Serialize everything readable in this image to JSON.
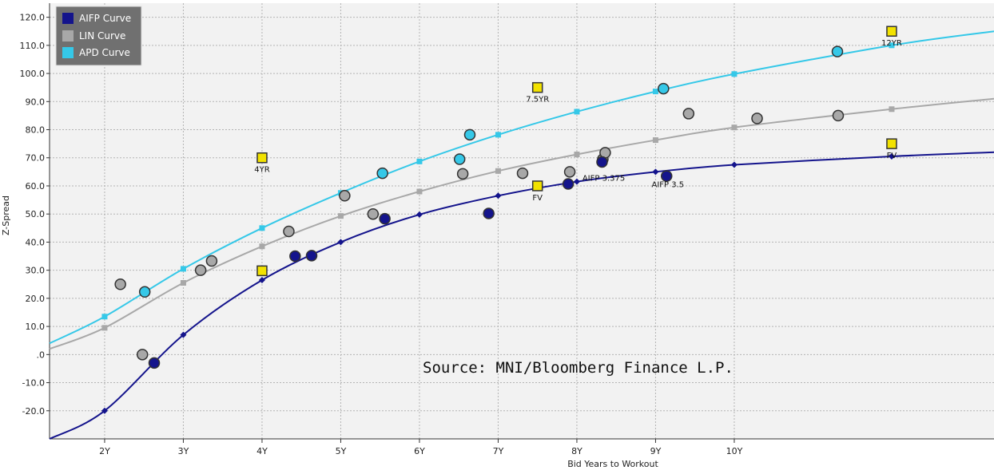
{
  "colors": {
    "aifp": "#14148c",
    "lin": "#a8a8a8",
    "apd": "#35c8e8",
    "fv_square": "#f2e200",
    "grid": "#b4b4b4",
    "plot_bg": "#f2f2f2",
    "legend_bg": "#707070"
  },
  "chart_data": {
    "type": "scatter",
    "title": "",
    "xlabel": "Bid Years to Workout",
    "ylabel": "Z-Spread",
    "xlim": [
      1.3,
      13.3
    ],
    "ylim": [
      -30,
      125
    ],
    "x_ticks": [
      2,
      3,
      4,
      5,
      6,
      7,
      8,
      9,
      10
    ],
    "x_tick_labels": [
      "2Y",
      "3Y",
      "4Y",
      "5Y",
      "6Y",
      "7Y",
      "8Y",
      "9Y",
      "10Y"
    ],
    "y_ticks": [
      -20,
      -10,
      0,
      10,
      20,
      30,
      40,
      50,
      60,
      70,
      80,
      90,
      100,
      110,
      120
    ],
    "y_tick_labels": [
      "-20.0",
      "-10.0",
      ".0",
      "10.0",
      "20.0",
      "30.0",
      "40.0",
      "50.0",
      "60.0",
      "70.0",
      "80.0",
      "90.0",
      "100.0",
      "110.0",
      "120.0"
    ],
    "grid": true,
    "legend_position": "top-left",
    "source": "Source: MNI/Bloomberg Finance L.P.",
    "curves": [
      {
        "name": "AIFP Curve",
        "color": "#14148c",
        "marker": "diamond",
        "x": [
          1.3,
          2,
          3,
          4,
          5,
          6,
          7,
          8,
          9,
          10,
          12,
          13.3
        ],
        "y": [
          -30,
          -20,
          7,
          26.5,
          40,
          49.8,
          56.5,
          61.5,
          65,
          67.5,
          70.5,
          72
        ],
        "marker_x": [
          2,
          3,
          4,
          5,
          6,
          7,
          8,
          9,
          10,
          12
        ],
        "marker_y": [
          -20,
          7,
          26.5,
          40,
          49.8,
          56.5,
          61.5,
          65,
          67.5,
          70.5
        ]
      },
      {
        "name": "LIN Curve",
        "color": "#a8a8a8",
        "marker": "square",
        "x": [
          1.3,
          2,
          3,
          4,
          5,
          6,
          7,
          8,
          9,
          10,
          12,
          13.3
        ],
        "y": [
          2,
          9.5,
          25.5,
          38.5,
          49.3,
          58,
          65.3,
          71.2,
          76.3,
          80.8,
          87.3,
          91
        ],
        "marker_x": [
          2,
          3,
          4,
          5,
          6,
          7,
          8,
          9,
          10,
          12
        ],
        "marker_y": [
          9.5,
          25.5,
          38.5,
          49.3,
          58,
          65.3,
          71.2,
          76.3,
          80.8,
          87.3
        ]
      },
      {
        "name": "APD Curve",
        "color": "#35c8e8",
        "marker": "square",
        "x": [
          1.3,
          2,
          3,
          4,
          5,
          6,
          7,
          8,
          9,
          10,
          12,
          13.3
        ],
        "y": [
          4,
          13.5,
          30.5,
          45,
          57.5,
          68.7,
          78.2,
          86.4,
          93.6,
          99.8,
          110,
          115
        ],
        "marker_x": [
          2,
          3,
          4,
          5,
          6,
          7,
          8,
          9,
          10,
          12
        ],
        "marker_y": [
          13.5,
          30.5,
          45,
          57.5,
          68.7,
          78.2,
          86.4,
          93.6,
          99.8,
          110
        ]
      }
    ],
    "bonds": [
      {
        "series": "LIN",
        "x": 2.2,
        "y": 25
      },
      {
        "series": "LIN",
        "x": 2.48,
        "y": 0
      },
      {
        "series": "LIN",
        "x": 3.22,
        "y": 30
      },
      {
        "series": "LIN",
        "x": 3.36,
        "y": 33.3
      },
      {
        "series": "LIN",
        "x": 4.34,
        "y": 43.8
      },
      {
        "series": "LIN",
        "x": 5.05,
        "y": 56.5
      },
      {
        "series": "LIN",
        "x": 5.41,
        "y": 50
      },
      {
        "series": "LIN",
        "x": 6.55,
        "y": 64.3
      },
      {
        "series": "LIN",
        "x": 7.31,
        "y": 64.5
      },
      {
        "series": "LIN",
        "x": 7.91,
        "y": 65
      },
      {
        "series": "LIN",
        "x": 8.33,
        "y": 69.5
      },
      {
        "series": "LIN",
        "x": 8.36,
        "y": 71.8
      },
      {
        "series": "LIN",
        "x": 9.42,
        "y": 85.7
      },
      {
        "series": "LIN",
        "x": 10.29,
        "y": 84
      },
      {
        "series": "LIN",
        "x": 11.32,
        "y": 85
      },
      {
        "series": "AIFP",
        "x": 2.63,
        "y": -3
      },
      {
        "series": "AIFP",
        "x": 4.42,
        "y": 35
      },
      {
        "series": "AIFP",
        "x": 4.63,
        "y": 35.2
      },
      {
        "series": "AIFP",
        "x": 5.56,
        "y": 48.3
      },
      {
        "series": "AIFP",
        "x": 6.88,
        "y": 50.2
      },
      {
        "series": "AIFP",
        "x": 7.89,
        "y": 60.7
      },
      {
        "series": "AIFP",
        "x": 8.32,
        "y": 68.5
      },
      {
        "series": "AIFP",
        "x": 9.14,
        "y": 63.5
      },
      {
        "series": "APD",
        "x": 2.51,
        "y": 22.3
      },
      {
        "series": "APD",
        "x": 5.53,
        "y": 64.5
      },
      {
        "series": "APD",
        "x": 6.51,
        "y": 69.5
      },
      {
        "series": "APD",
        "x": 6.64,
        "y": 78.2
      },
      {
        "series": "APD",
        "x": 9.1,
        "y": 94.6
      },
      {
        "series": "APD",
        "x": 11.31,
        "y": 107.8
      }
    ],
    "fv_points": [
      {
        "label": "4YR",
        "x": 4.0,
        "y": 70
      },
      {
        "label": "",
        "x": 4.0,
        "y": 29.8
      },
      {
        "label": "7.5YR",
        "x": 7.5,
        "y": 95
      },
      {
        "label": "FV",
        "x": 7.5,
        "y": 60
      },
      {
        "label": "12YR",
        "x": 12.0,
        "y": 115
      },
      {
        "label": "FV",
        "x": 12.0,
        "y": 75
      }
    ],
    "annotations": [
      {
        "text": "AIFP 3.375",
        "x": 8.07,
        "y": 61.8
      },
      {
        "text": "AIFP 3.5",
        "x": 8.95,
        "y": 59.5
      }
    ]
  }
}
